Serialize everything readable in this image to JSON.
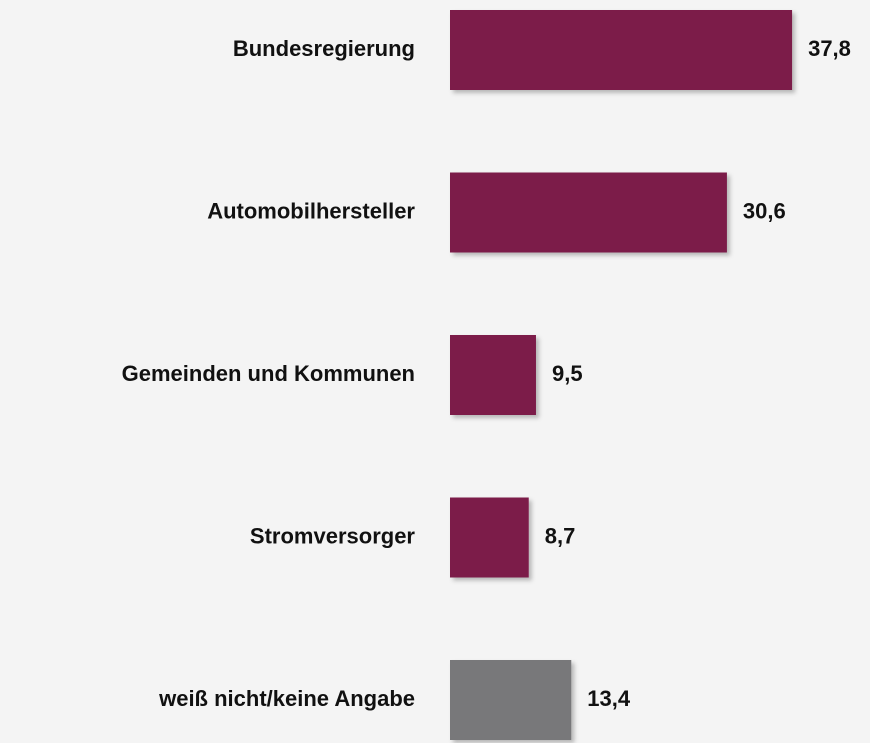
{
  "chart_data": {
    "type": "bar",
    "orientation": "horizontal",
    "categories": [
      "Bundesregierung",
      "Automobilhersteller",
      "Gemeinden und Kommunen",
      "Stromversorger",
      "weiß nicht/keine Angabe"
    ],
    "values": [
      37.8,
      30.6,
      9.5,
      8.7,
      13.4
    ],
    "value_labels": [
      "37,8",
      "30,6",
      "9,5",
      "8,7",
      "13,4"
    ],
    "colors": [
      "#7b1c4a",
      "#7b1c4a",
      "#7b1c4a",
      "#7b1c4a",
      "#78787a"
    ]
  }
}
